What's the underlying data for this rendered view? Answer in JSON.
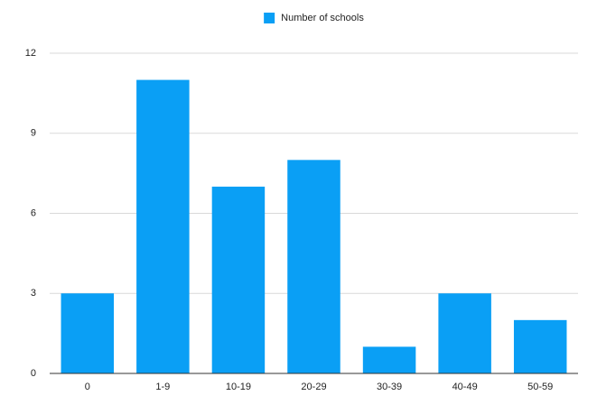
{
  "chart_data": {
    "type": "bar",
    "categories": [
      "0",
      "1-9",
      "10-19",
      "20-29",
      "30-39",
      "40-49",
      "50-59"
    ],
    "series": [
      {
        "name": "Number of schools",
        "color": "#0a9ff5",
        "values": [
          3,
          11,
          7,
          8,
          1,
          3,
          2
        ]
      }
    ],
    "ylim": [
      0,
      12
    ],
    "yticks": [
      0,
      3,
      6,
      9,
      12
    ],
    "grid": true,
    "legend": "top"
  }
}
